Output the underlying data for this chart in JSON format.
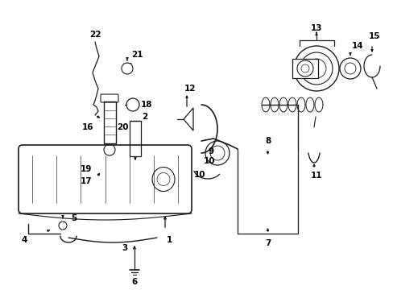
{
  "bg_color": "#ffffff",
  "line_color": "#1a1a1a",
  "label_color": "#000000",
  "label_fontsize": 7.5,
  "fig_width": 4.89,
  "fig_height": 3.6,
  "dpi": 100
}
